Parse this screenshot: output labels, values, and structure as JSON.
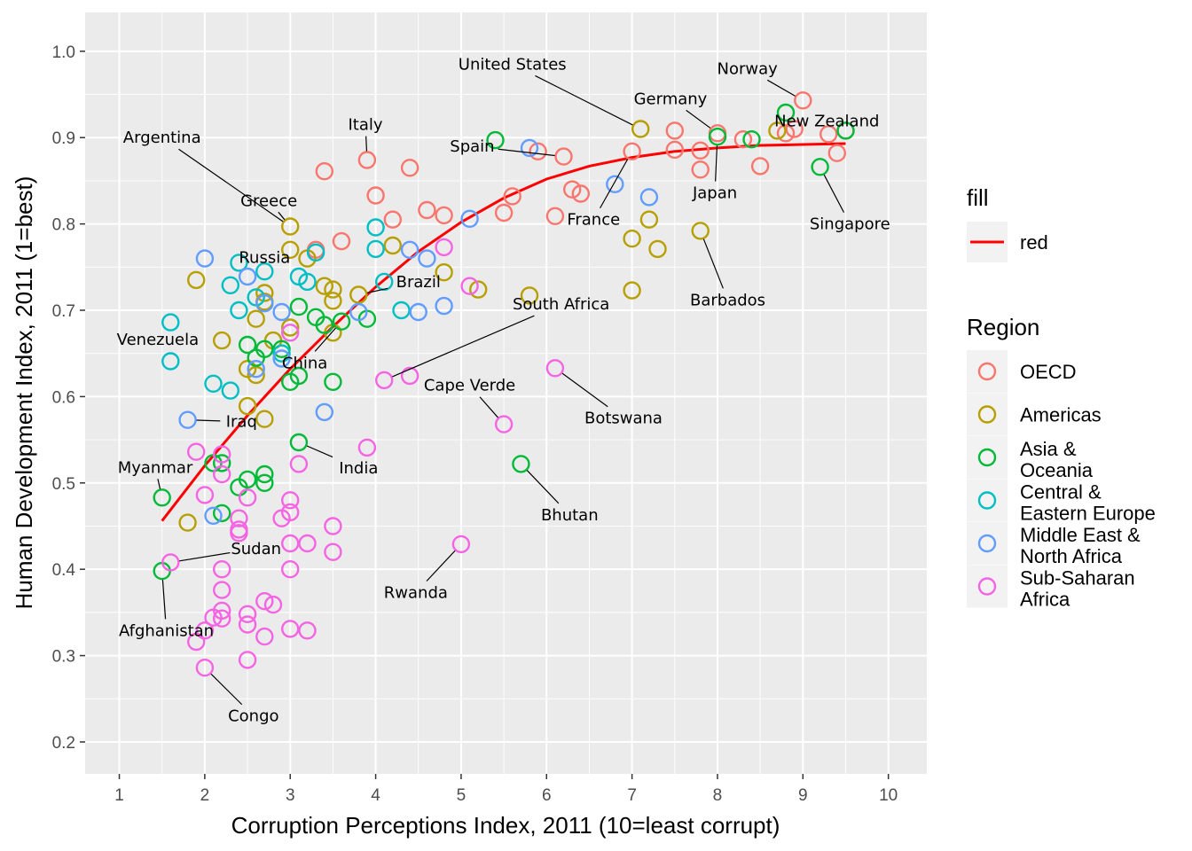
{
  "chart_data": {
    "type": "scatter",
    "xlabel": "Corruption Perceptions Index, 2011 (10=least corrupt)",
    "ylabel": "Human Development Index, 2011 (1=best)",
    "xlim": [
      0.6,
      10.45
    ],
    "ylim": [
      0.163,
      1.045
    ],
    "x_ticks": [
      1,
      2,
      3,
      4,
      5,
      6,
      7,
      8,
      9,
      10
    ],
    "y_ticks": [
      0.2,
      0.3,
      0.4,
      0.5,
      0.6,
      0.7,
      0.8,
      0.9,
      1.0
    ],
    "x_tick_labels": [
      "1",
      "2",
      "3",
      "4",
      "5",
      "6",
      "7",
      "8",
      "9",
      "10"
    ],
    "y_tick_labels": [
      "0.2",
      "0.3",
      "0.4",
      "0.5",
      "0.6",
      "0.7",
      "0.8",
      "0.9",
      "1.0"
    ],
    "grid": true,
    "background": "#ebebeb",
    "legend_position": "right",
    "legend": {
      "fill": {
        "title": "fill",
        "items": [
          {
            "label": "red",
            "color": "#ff0000"
          }
        ]
      },
      "region": {
        "title": "Region",
        "items": [
          {
            "label": [
              "OECD"
            ],
            "color": "#f8766d"
          },
          {
            "label": [
              "Americas"
            ],
            "color": "#b79f00"
          },
          {
            "label": [
              "Asia &",
              "Oceania"
            ],
            "color": "#00ba38"
          },
          {
            "label": [
              "Central &",
              "Eastern Europe"
            ],
            "color": "#00bfc4"
          },
          {
            "label": [
              "Middle East &",
              "North Africa"
            ],
            "color": "#619cff"
          },
          {
            "label": [
              "Sub-Saharan",
              "Africa"
            ],
            "color": "#f564e3"
          }
        ]
      }
    },
    "trend_line": {
      "color": "#ff0000",
      "points": [
        [
          1.5,
          0.456
        ],
        [
          2.0,
          0.52
        ],
        [
          2.5,
          0.578
        ],
        [
          3.0,
          0.632
        ],
        [
          3.5,
          0.681
        ],
        [
          4.0,
          0.727
        ],
        [
          4.5,
          0.768
        ],
        [
          5.0,
          0.802
        ],
        [
          5.5,
          0.83
        ],
        [
          6.0,
          0.852
        ],
        [
          6.5,
          0.867
        ],
        [
          7.0,
          0.877
        ],
        [
          7.5,
          0.884
        ],
        [
          8.0,
          0.888
        ],
        [
          8.5,
          0.891
        ],
        [
          9.0,
          0.892
        ],
        [
          9.5,
          0.893
        ]
      ]
    },
    "series": [
      {
        "name": "OECD",
        "color": "#f8766d",
        "points": [
          [
            9.0,
            0.943
          ],
          [
            9.5,
            0.908
          ],
          [
            9.4,
            0.882
          ],
          [
            9.3,
            0.904
          ],
          [
            8.9,
            0.91
          ],
          [
            8.8,
            0.905
          ],
          [
            8.5,
            0.867
          ],
          [
            8.3,
            0.898
          ],
          [
            8.0,
            0.905
          ],
          [
            7.8,
            0.885
          ],
          [
            7.8,
            0.863
          ],
          [
            7.5,
            0.908
          ],
          [
            7.5,
            0.886
          ],
          [
            7.0,
            0.884
          ],
          [
            6.4,
            0.835
          ],
          [
            6.3,
            0.84
          ],
          [
            6.2,
            0.878
          ],
          [
            6.1,
            0.809
          ],
          [
            5.9,
            0.884
          ],
          [
            5.6,
            0.832
          ],
          [
            5.5,
            0.813
          ],
          [
            4.8,
            0.81
          ],
          [
            4.6,
            0.816
          ],
          [
            4.4,
            0.865
          ],
          [
            4.2,
            0.805
          ],
          [
            4.0,
            0.833
          ],
          [
            3.9,
            0.874
          ],
          [
            3.6,
            0.78
          ],
          [
            3.4,
            0.861
          ],
          [
            3.3,
            0.77
          ]
        ]
      },
      {
        "name": "Americas",
        "color": "#b79f00",
        "points": [
          [
            7.1,
            0.91
          ],
          [
            8.7,
            0.908
          ],
          [
            7.8,
            0.792
          ],
          [
            7.3,
            0.771
          ],
          [
            7.2,
            0.805
          ],
          [
            7.0,
            0.783
          ],
          [
            7.0,
            0.723
          ],
          [
            5.8,
            0.717
          ],
          [
            5.2,
            0.724
          ],
          [
            4.8,
            0.744
          ],
          [
            4.2,
            0.775
          ],
          [
            3.8,
            0.718
          ],
          [
            3.5,
            0.724
          ],
          [
            3.5,
            0.711
          ],
          [
            3.5,
            0.674
          ],
          [
            3.4,
            0.728
          ],
          [
            3.2,
            0.76
          ],
          [
            3.0,
            0.797
          ],
          [
            3.0,
            0.77
          ],
          [
            3.0,
            0.68
          ],
          [
            2.8,
            0.665
          ],
          [
            2.7,
            0.72
          ],
          [
            2.7,
            0.71
          ],
          [
            2.7,
            0.574
          ],
          [
            2.6,
            0.69
          ],
          [
            2.6,
            0.625
          ],
          [
            2.5,
            0.632
          ],
          [
            2.5,
            0.589
          ],
          [
            2.2,
            0.665
          ],
          [
            1.9,
            0.735
          ],
          [
            1.8,
            0.454
          ]
        ]
      },
      {
        "name": "Asia & Oceania",
        "color": "#00ba38",
        "points": [
          [
            9.5,
            0.908
          ],
          [
            9.2,
            0.866
          ],
          [
            8.8,
            0.929
          ],
          [
            8.4,
            0.898
          ],
          [
            8.0,
            0.901
          ],
          [
            5.7,
            0.522
          ],
          [
            5.4,
            0.897
          ],
          [
            3.9,
            0.69
          ],
          [
            3.6,
            0.687
          ],
          [
            3.5,
            0.617
          ],
          [
            3.4,
            0.683
          ],
          [
            3.3,
            0.692
          ],
          [
            3.1,
            0.704
          ],
          [
            3.1,
            0.624
          ],
          [
            3.1,
            0.547
          ],
          [
            3.0,
            0.617
          ],
          [
            2.9,
            0.655
          ],
          [
            2.7,
            0.655
          ],
          [
            2.7,
            0.51
          ],
          [
            2.7,
            0.5
          ],
          [
            2.6,
            0.645
          ],
          [
            2.5,
            0.66
          ],
          [
            2.5,
            0.504
          ],
          [
            2.4,
            0.495
          ],
          [
            2.2,
            0.523
          ],
          [
            2.2,
            0.465
          ],
          [
            2.1,
            0.523
          ],
          [
            1.5,
            0.483
          ],
          [
            1.5,
            0.398
          ]
        ]
      },
      {
        "name": "Central & Eastern Europe",
        "color": "#00bfc4",
        "points": [
          [
            4.3,
            0.7
          ],
          [
            4.1,
            0.733
          ],
          [
            4.0,
            0.796
          ],
          [
            4.0,
            0.771
          ],
          [
            3.3,
            0.767
          ],
          [
            3.2,
            0.733
          ],
          [
            3.1,
            0.739
          ],
          [
            2.9,
            0.65
          ],
          [
            2.7,
            0.745
          ],
          [
            2.6,
            0.715
          ],
          [
            2.4,
            0.755
          ],
          [
            2.4,
            0.7
          ],
          [
            2.3,
            0.729
          ],
          [
            2.3,
            0.607
          ],
          [
            2.1,
            0.615
          ],
          [
            1.6,
            0.686
          ],
          [
            1.6,
            0.641
          ]
        ]
      },
      {
        "name": "Middle East & North Africa",
        "color": "#619cff",
        "points": [
          [
            7.2,
            0.831
          ],
          [
            6.8,
            0.846
          ],
          [
            5.8,
            0.888
          ],
          [
            5.1,
            0.806
          ],
          [
            4.8,
            0.705
          ],
          [
            4.6,
            0.76
          ],
          [
            4.5,
            0.698
          ],
          [
            4.4,
            0.77
          ],
          [
            3.8,
            0.698
          ],
          [
            3.4,
            0.582
          ],
          [
            2.9,
            0.698
          ],
          [
            2.9,
            0.644
          ],
          [
            2.7,
            0.708
          ],
          [
            2.6,
            0.632
          ],
          [
            2.5,
            0.739
          ],
          [
            2.0,
            0.76
          ],
          [
            2.1,
            0.462
          ],
          [
            1.8,
            0.573
          ]
        ]
      },
      {
        "name": "Sub-Saharan Africa",
        "color": "#f564e3",
        "points": [
          [
            6.1,
            0.633
          ],
          [
            5.5,
            0.568
          ],
          [
            5.1,
            0.728
          ],
          [
            5.0,
            0.429
          ],
          [
            4.8,
            0.773
          ],
          [
            4.4,
            0.624
          ],
          [
            4.1,
            0.619
          ],
          [
            3.9,
            0.541
          ],
          [
            3.5,
            0.45
          ],
          [
            3.5,
            0.42
          ],
          [
            3.2,
            0.43
          ],
          [
            3.2,
            0.329
          ],
          [
            3.1,
            0.522
          ],
          [
            3.0,
            0.48
          ],
          [
            3.0,
            0.466
          ],
          [
            3.0,
            0.43
          ],
          [
            3.0,
            0.4
          ],
          [
            3.0,
            0.331
          ],
          [
            3.0,
            0.674
          ],
          [
            2.9,
            0.459
          ],
          [
            2.8,
            0.359
          ],
          [
            2.7,
            0.363
          ],
          [
            2.7,
            0.322
          ],
          [
            2.5,
            0.483
          ],
          [
            2.5,
            0.348
          ],
          [
            2.5,
            0.336
          ],
          [
            2.5,
            0.295
          ],
          [
            2.4,
            0.459
          ],
          [
            2.4,
            0.446
          ],
          [
            2.4,
            0.442
          ],
          [
            2.2,
            0.533
          ],
          [
            2.2,
            0.51
          ],
          [
            2.2,
            0.4
          ],
          [
            2.2,
            0.376
          ],
          [
            2.2,
            0.352
          ],
          [
            2.2,
            0.343
          ],
          [
            2.1,
            0.344
          ],
          [
            2.0,
            0.486
          ],
          [
            2.0,
            0.329
          ],
          [
            2.0,
            0.286
          ],
          [
            1.9,
            0.536
          ],
          [
            1.9,
            0.316
          ],
          [
            1.6,
            0.408
          ]
        ]
      }
    ],
    "annotations": [
      {
        "label": "Norway",
        "x": 9.0,
        "y": 0.943,
        "label_x": 8.35,
        "label_y": 0.98
      },
      {
        "label": "United States",
        "x": 7.1,
        "y": 0.91,
        "label_x": 5.6,
        "label_y": 0.985
      },
      {
        "label": "Germany",
        "x": 8.0,
        "y": 0.905,
        "label_x": 7.45,
        "label_y": 0.945
      },
      {
        "label": "New Zealand",
        "x": 9.5,
        "y": 0.908,
        "label_x": 9.28,
        "label_y": 0.919
      },
      {
        "label": "Italy",
        "x": 3.9,
        "y": 0.874,
        "label_x": 3.88,
        "label_y": 0.915
      },
      {
        "label": "Argentina",
        "x": 3.0,
        "y": 0.797,
        "label_x": 1.5,
        "label_y": 0.9
      },
      {
        "label": "Spain",
        "x": 6.2,
        "y": 0.878,
        "label_x": 5.13,
        "label_y": 0.89
      },
      {
        "label": "Japan",
        "x": 8.0,
        "y": 0.901,
        "label_x": 7.97,
        "label_y": 0.836
      },
      {
        "label": "Singapore",
        "x": 9.2,
        "y": 0.866,
        "label_x": 9.55,
        "label_y": 0.8
      },
      {
        "label": "France",
        "x": 7.0,
        "y": 0.884,
        "label_x": 6.55,
        "label_y": 0.805
      },
      {
        "label": "Greece",
        "x": 3.0,
        "y": 0.797,
        "label_x": 2.75,
        "label_y": 0.827
      },
      {
        "label": "Russia",
        "x": 2.4,
        "y": 0.755,
        "label_x": 2.7,
        "label_y": 0.761
      },
      {
        "label": "Brazil",
        "x": 3.8,
        "y": 0.718,
        "label_x": 4.5,
        "label_y": 0.733
      },
      {
        "label": "Barbados",
        "x": 7.8,
        "y": 0.792,
        "label_x": 8.12,
        "label_y": 0.712
      },
      {
        "label": "South Africa",
        "x": 4.1,
        "y": 0.619,
        "label_x": 6.17,
        "label_y": 0.707
      },
      {
        "label": "Venezuela",
        "x": 1.6,
        "y": 0.686,
        "label_x": 1.45,
        "label_y": 0.666
      },
      {
        "label": "China",
        "x": 3.6,
        "y": 0.687,
        "label_x": 3.17,
        "label_y": 0.639
      },
      {
        "label": "Cape Verde",
        "x": 5.5,
        "y": 0.568,
        "label_x": 5.1,
        "label_y": 0.613
      },
      {
        "label": "Botswana",
        "x": 6.1,
        "y": 0.633,
        "label_x": 6.9,
        "label_y": 0.575
      },
      {
        "label": "Iraq",
        "x": 1.8,
        "y": 0.573,
        "label_x": 2.43,
        "label_y": 0.571
      },
      {
        "label": "Myanmar",
        "x": 1.5,
        "y": 0.483,
        "label_x": 1.42,
        "label_y": 0.518
      },
      {
        "label": "India",
        "x": 3.1,
        "y": 0.547,
        "label_x": 3.8,
        "label_y": 0.517
      },
      {
        "label": "Bhutan",
        "x": 5.7,
        "y": 0.522,
        "label_x": 6.27,
        "label_y": 0.463
      },
      {
        "label": "Sudan",
        "x": 1.6,
        "y": 0.408,
        "label_x": 2.6,
        "label_y": 0.424
      },
      {
        "label": "Rwanda",
        "x": 5.0,
        "y": 0.429,
        "label_x": 4.47,
        "label_y": 0.373
      },
      {
        "label": "Afghanistan",
        "x": 1.5,
        "y": 0.398,
        "label_x": 1.55,
        "label_y": 0.329
      },
      {
        "label": "Congo",
        "x": 2.0,
        "y": 0.286,
        "label_x": 2.57,
        "label_y": 0.23
      }
    ]
  }
}
